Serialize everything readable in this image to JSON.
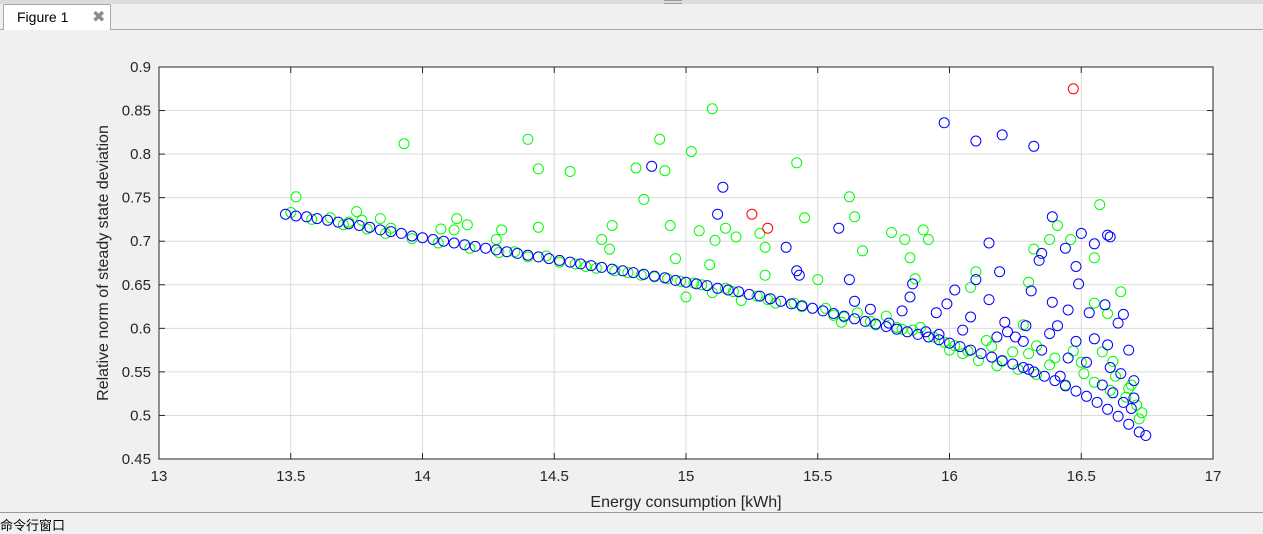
{
  "window": {
    "tab_label": "Figure 1",
    "close_glyph": "✖",
    "bottom_panel_label": "命令行窗口"
  },
  "chart_data": {
    "type": "scatter",
    "title": "",
    "xlabel": "Energy consumption [kWh]",
    "ylabel": "Relative norm of steady state deviation",
    "xlim": [
      13,
      17
    ],
    "ylim": [
      0.45,
      0.9
    ],
    "xticks": [
      13,
      13.5,
      14,
      14.5,
      15,
      15.5,
      16,
      16.5,
      17
    ],
    "xtick_labels": [
      "13",
      "13.5",
      "14",
      "14.5",
      "15",
      "15.5",
      "16",
      "16.5",
      "17"
    ],
    "yticks": [
      0.45,
      0.5,
      0.55,
      0.6,
      0.65,
      0.7,
      0.75,
      0.8,
      0.85,
      0.9
    ],
    "ytick_labels": [
      "0.45",
      "0.5",
      "0.55",
      "0.6",
      "0.65",
      "0.7",
      "0.75",
      "0.8",
      "0.85",
      "0.9"
    ],
    "grid": true,
    "legend": "none",
    "marker": "open-circle",
    "colors": {
      "blue": "#0000ff",
      "green": "#00ff00",
      "red": "#ff0000"
    },
    "series": [
      {
        "color": "#0000ff",
        "points": [
          [
            13.48,
            0.731
          ],
          [
            13.52,
            0.729
          ],
          [
            13.56,
            0.728
          ],
          [
            13.6,
            0.726
          ],
          [
            13.64,
            0.724
          ],
          [
            13.68,
            0.722
          ],
          [
            13.72,
            0.72
          ],
          [
            13.76,
            0.718
          ],
          [
            13.8,
            0.716
          ],
          [
            13.84,
            0.713
          ],
          [
            13.88,
            0.711
          ],
          [
            13.92,
            0.709
          ],
          [
            13.96,
            0.706
          ],
          [
            14.0,
            0.704
          ],
          [
            14.04,
            0.702
          ],
          [
            14.08,
            0.7
          ],
          [
            14.12,
            0.698
          ],
          [
            14.16,
            0.696
          ],
          [
            14.2,
            0.694
          ],
          [
            14.24,
            0.692
          ],
          [
            14.28,
            0.69
          ],
          [
            14.32,
            0.688
          ],
          [
            14.36,
            0.686
          ],
          [
            14.4,
            0.684
          ],
          [
            14.44,
            0.682
          ],
          [
            14.48,
            0.68
          ],
          [
            14.52,
            0.678
          ],
          [
            14.56,
            0.676
          ],
          [
            14.6,
            0.674
          ],
          [
            14.64,
            0.672
          ],
          [
            14.68,
            0.67
          ],
          [
            14.72,
            0.668
          ],
          [
            14.76,
            0.666
          ],
          [
            14.8,
            0.664
          ],
          [
            14.84,
            0.662
          ],
          [
            14.88,
            0.66
          ],
          [
            14.92,
            0.658
          ],
          [
            14.96,
            0.655
          ],
          [
            15.0,
            0.653
          ],
          [
            15.04,
            0.651
          ],
          [
            15.08,
            0.649
          ],
          [
            15.12,
            0.646
          ],
          [
            15.16,
            0.644
          ],
          [
            15.2,
            0.642
          ],
          [
            15.24,
            0.639
          ],
          [
            15.28,
            0.637
          ],
          [
            15.32,
            0.634
          ],
          [
            15.36,
            0.631
          ],
          [
            15.4,
            0.628
          ],
          [
            15.44,
            0.626
          ],
          [
            15.48,
            0.623
          ],
          [
            15.52,
            0.62
          ],
          [
            15.56,
            0.617
          ],
          [
            15.6,
            0.614
          ],
          [
            15.64,
            0.611
          ],
          [
            15.68,
            0.608
          ],
          [
            15.72,
            0.605
          ],
          [
            15.76,
            0.602
          ],
          [
            15.8,
            0.599
          ],
          [
            15.84,
            0.596
          ],
          [
            15.88,
            0.593
          ],
          [
            15.92,
            0.59
          ],
          [
            15.96,
            0.587
          ],
          [
            16.0,
            0.583
          ],
          [
            16.04,
            0.579
          ],
          [
            16.08,
            0.575
          ],
          [
            16.12,
            0.571
          ],
          [
            16.16,
            0.567
          ],
          [
            16.2,
            0.563
          ],
          [
            16.24,
            0.559
          ],
          [
            16.28,
            0.555
          ],
          [
            16.32,
            0.55
          ],
          [
            16.36,
            0.545
          ],
          [
            16.4,
            0.54
          ],
          [
            16.44,
            0.534
          ],
          [
            16.48,
            0.528
          ],
          [
            16.52,
            0.522
          ],
          [
            16.56,
            0.515
          ],
          [
            16.6,
            0.507
          ],
          [
            16.64,
            0.499
          ],
          [
            16.68,
            0.49
          ],
          [
            16.72,
            0.481
          ],
          [
            16.745,
            0.477
          ],
          [
            15.98,
            0.836
          ],
          [
            16.1,
            0.815
          ],
          [
            16.2,
            0.822
          ],
          [
            16.32,
            0.809
          ],
          [
            14.87,
            0.786
          ],
          [
            15.14,
            0.762
          ],
          [
            15.12,
            0.731
          ],
          [
            15.58,
            0.715
          ],
          [
            15.38,
            0.693
          ],
          [
            16.15,
            0.698
          ],
          [
            16.6,
            0.707
          ],
          [
            16.61,
            0.705
          ],
          [
            16.5,
            0.709
          ],
          [
            16.44,
            0.692
          ],
          [
            16.39,
            0.728
          ],
          [
            16.55,
            0.697
          ],
          [
            16.48,
            0.671
          ],
          [
            16.35,
            0.686
          ],
          [
            16.34,
            0.678
          ],
          [
            16.19,
            0.665
          ],
          [
            16.1,
            0.656
          ],
          [
            16.02,
            0.644
          ],
          [
            16.49,
            0.651
          ],
          [
            16.31,
            0.643
          ],
          [
            16.15,
            0.633
          ],
          [
            15.62,
            0.656
          ],
          [
            15.43,
            0.661
          ],
          [
            15.42,
            0.666
          ],
          [
            15.64,
            0.631
          ],
          [
            15.85,
            0.636
          ],
          [
            15.7,
            0.622
          ],
          [
            15.95,
            0.618
          ],
          [
            16.08,
            0.613
          ],
          [
            16.21,
            0.607
          ],
          [
            16.29,
            0.603
          ],
          [
            16.39,
            0.63
          ],
          [
            16.45,
            0.621
          ],
          [
            16.59,
            0.627
          ],
          [
            16.53,
            0.618
          ],
          [
            16.64,
            0.606
          ],
          [
            16.66,
            0.616
          ],
          [
            16.41,
            0.603
          ],
          [
            16.38,
            0.594
          ],
          [
            16.48,
            0.585
          ],
          [
            16.55,
            0.588
          ],
          [
            16.6,
            0.581
          ],
          [
            16.68,
            0.575
          ],
          [
            16.22,
            0.596
          ],
          [
            16.35,
            0.575
          ],
          [
            16.45,
            0.566
          ],
          [
            16.52,
            0.561
          ],
          [
            16.61,
            0.555
          ],
          [
            16.65,
            0.548
          ],
          [
            16.7,
            0.54
          ],
          [
            16.58,
            0.535
          ],
          [
            16.62,
            0.526
          ],
          [
            16.7,
            0.52
          ],
          [
            16.69,
            0.508
          ],
          [
            16.66,
            0.515
          ],
          [
            16.42,
            0.545
          ],
          [
            16.3,
            0.553
          ],
          [
            16.28,
            0.585
          ],
          [
            16.25,
            0.59
          ],
          [
            16.18,
            0.59
          ],
          [
            16.05,
            0.598
          ],
          [
            15.96,
            0.593
          ],
          [
            15.91,
            0.596
          ],
          [
            15.99,
            0.628
          ],
          [
            15.86,
            0.651
          ],
          [
            15.82,
            0.62
          ],
          [
            15.77,
            0.606
          ]
        ]
      },
      {
        "color": "#00ff00",
        "points": [
          [
            13.5,
            0.733
          ],
          [
            13.52,
            0.751
          ],
          [
            13.58,
            0.725
          ],
          [
            13.65,
            0.727
          ],
          [
            13.72,
            0.722
          ],
          [
            13.75,
            0.734
          ],
          [
            13.77,
            0.724
          ],
          [
            13.84,
            0.726
          ],
          [
            13.88,
            0.715
          ],
          [
            13.93,
            0.812
          ],
          [
            14.07,
            0.714
          ],
          [
            14.12,
            0.713
          ],
          [
            14.13,
            0.726
          ],
          [
            14.17,
            0.719
          ],
          [
            14.28,
            0.702
          ],
          [
            14.3,
            0.713
          ],
          [
            14.4,
            0.817
          ],
          [
            14.44,
            0.783
          ],
          [
            14.44,
            0.716
          ],
          [
            14.56,
            0.78
          ],
          [
            14.68,
            0.702
          ],
          [
            14.72,
            0.718
          ],
          [
            14.71,
            0.691
          ],
          [
            14.81,
            0.784
          ],
          [
            14.84,
            0.748
          ],
          [
            14.9,
            0.817
          ],
          [
            14.92,
            0.781
          ],
          [
            14.94,
            0.718
          ],
          [
            14.96,
            0.68
          ],
          [
            15.02,
            0.803
          ],
          [
            15.05,
            0.712
          ],
          [
            15.09,
            0.673
          ],
          [
            15.1,
            0.852
          ],
          [
            15.11,
            0.701
          ],
          [
            15.15,
            0.715
          ],
          [
            15.19,
            0.705
          ],
          [
            15.28,
            0.709
          ],
          [
            15.3,
            0.693
          ],
          [
            15.3,
            0.661
          ],
          [
            15.42,
            0.79
          ],
          [
            15.45,
            0.727
          ],
          [
            15.5,
            0.656
          ],
          [
            15.62,
            0.751
          ],
          [
            15.64,
            0.728
          ],
          [
            15.67,
            0.689
          ],
          [
            15.78,
            0.71
          ],
          [
            15.83,
            0.702
          ],
          [
            15.9,
            0.713
          ],
          [
            15.92,
            0.702
          ],
          [
            15.85,
            0.681
          ],
          [
            15.87,
            0.657
          ],
          [
            16.08,
            0.647
          ],
          [
            16.1,
            0.665
          ],
          [
            16.32,
            0.691
          ],
          [
            16.3,
            0.653
          ],
          [
            16.38,
            0.702
          ],
          [
            16.41,
            0.718
          ],
          [
            16.46,
            0.702
          ],
          [
            16.57,
            0.742
          ],
          [
            16.55,
            0.681
          ],
          [
            16.6,
            0.617
          ],
          [
            16.65,
            0.642
          ],
          [
            16.55,
            0.629
          ],
          [
            15.0,
            0.636
          ],
          [
            15.1,
            0.641
          ],
          [
            15.21,
            0.632
          ],
          [
            15.34,
            0.629
          ],
          [
            15.56,
            0.615
          ],
          [
            15.59,
            0.607
          ],
          [
            15.72,
            0.604
          ],
          [
            15.8,
            0.601
          ],
          [
            15.86,
            0.598
          ],
          [
            15.94,
            0.59
          ],
          [
            16.02,
            0.58
          ],
          [
            16.07,
            0.574
          ],
          [
            16.14,
            0.586
          ],
          [
            16.2,
            0.562
          ],
          [
            16.26,
            0.553
          ],
          [
            16.33,
            0.547
          ],
          [
            16.38,
            0.558
          ],
          [
            16.44,
            0.535
          ],
          [
            16.51,
            0.548
          ],
          [
            16.55,
            0.538
          ],
          [
            16.61,
            0.529
          ],
          [
            16.67,
            0.521
          ],
          [
            16.71,
            0.512
          ],
          [
            16.73,
            0.503
          ],
          [
            16.72,
            0.496
          ],
          [
            16.68,
            0.531
          ],
          [
            16.62,
            0.562
          ],
          [
            16.58,
            0.573
          ],
          [
            16.47,
            0.574
          ],
          [
            16.4,
            0.566
          ],
          [
            16.33,
            0.58
          ],
          [
            16.28,
            0.604
          ],
          [
            16.24,
            0.573
          ],
          [
            16.18,
            0.557
          ],
          [
            16.11,
            0.563
          ],
          [
            16.05,
            0.571
          ],
          [
            15.98,
            0.584
          ],
          [
            15.89,
            0.601
          ],
          [
            15.76,
            0.614
          ],
          [
            15.65,
            0.618
          ],
          [
            15.53,
            0.623
          ],
          [
            15.41,
            0.629
          ],
          [
            15.27,
            0.637
          ],
          [
            15.15,
            0.646
          ],
          [
            15.03,
            0.652
          ],
          [
            14.93,
            0.657
          ],
          [
            14.83,
            0.661
          ],
          [
            14.73,
            0.666
          ],
          [
            14.62,
            0.671
          ],
          [
            14.52,
            0.676
          ],
          [
            14.4,
            0.682
          ],
          [
            14.29,
            0.687
          ],
          [
            14.18,
            0.692
          ],
          [
            14.06,
            0.698
          ],
          [
            13.96,
            0.703
          ],
          [
            13.86,
            0.709
          ],
          [
            13.79,
            0.714
          ],
          [
            13.7,
            0.719
          ],
          [
            14.35,
            0.688
          ],
          [
            14.47,
            0.683
          ],
          [
            14.58,
            0.674
          ],
          [
            14.66,
            0.669
          ],
          [
            14.78,
            0.664
          ],
          [
            14.88,
            0.659
          ],
          [
            14.98,
            0.654
          ],
          [
            15.06,
            0.65
          ],
          [
            15.18,
            0.642
          ],
          [
            15.31,
            0.633
          ],
          [
            15.44,
            0.625
          ],
          [
            15.6,
            0.613
          ],
          [
            15.7,
            0.608
          ],
          [
            15.82,
            0.599
          ],
          [
            16.0,
            0.575
          ],
          [
            16.16,
            0.579
          ],
          [
            16.3,
            0.571
          ],
          [
            16.5,
            0.561
          ],
          [
            16.63,
            0.545
          ],
          [
            16.69,
            0.535
          ]
        ]
      },
      {
        "color": "#ff0000",
        "points": [
          [
            15.25,
            0.731
          ],
          [
            15.31,
            0.715
          ],
          [
            16.47,
            0.875
          ]
        ]
      }
    ]
  }
}
